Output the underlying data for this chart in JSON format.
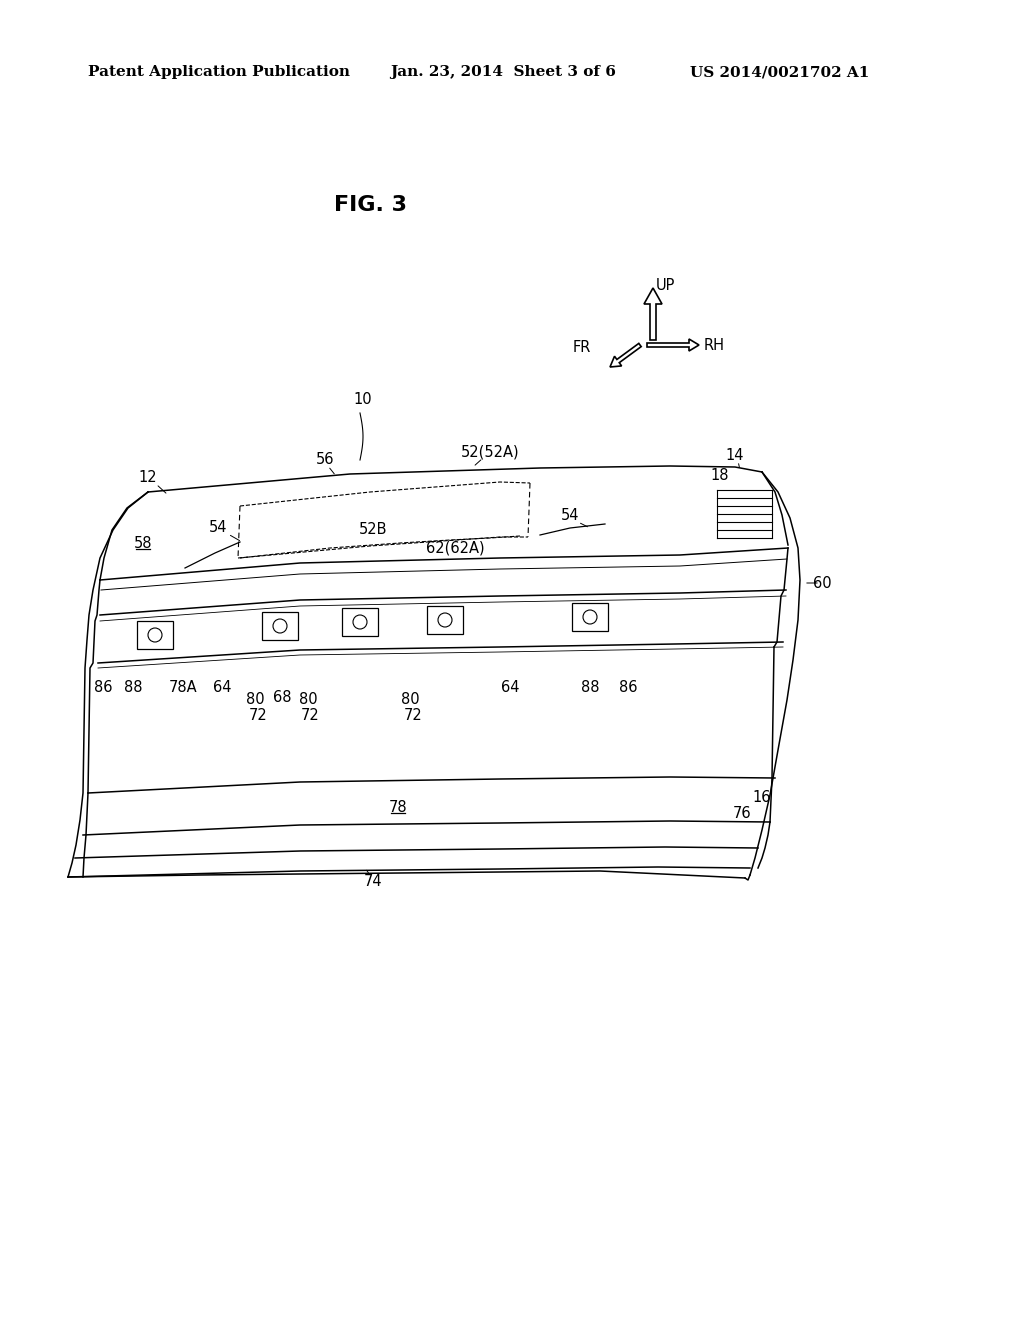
{
  "bg_color": "#ffffff",
  "header_left": "Patent Application Publication",
  "header_center": "Jan. 23, 2014  Sheet 3 of 6",
  "header_right": "US 2014/0021702 A1",
  "fig_label": "FIG. 3",
  "header_fontsize": 11,
  "label_fontsize": 10.5,
  "fig_label_fontsize": 16
}
